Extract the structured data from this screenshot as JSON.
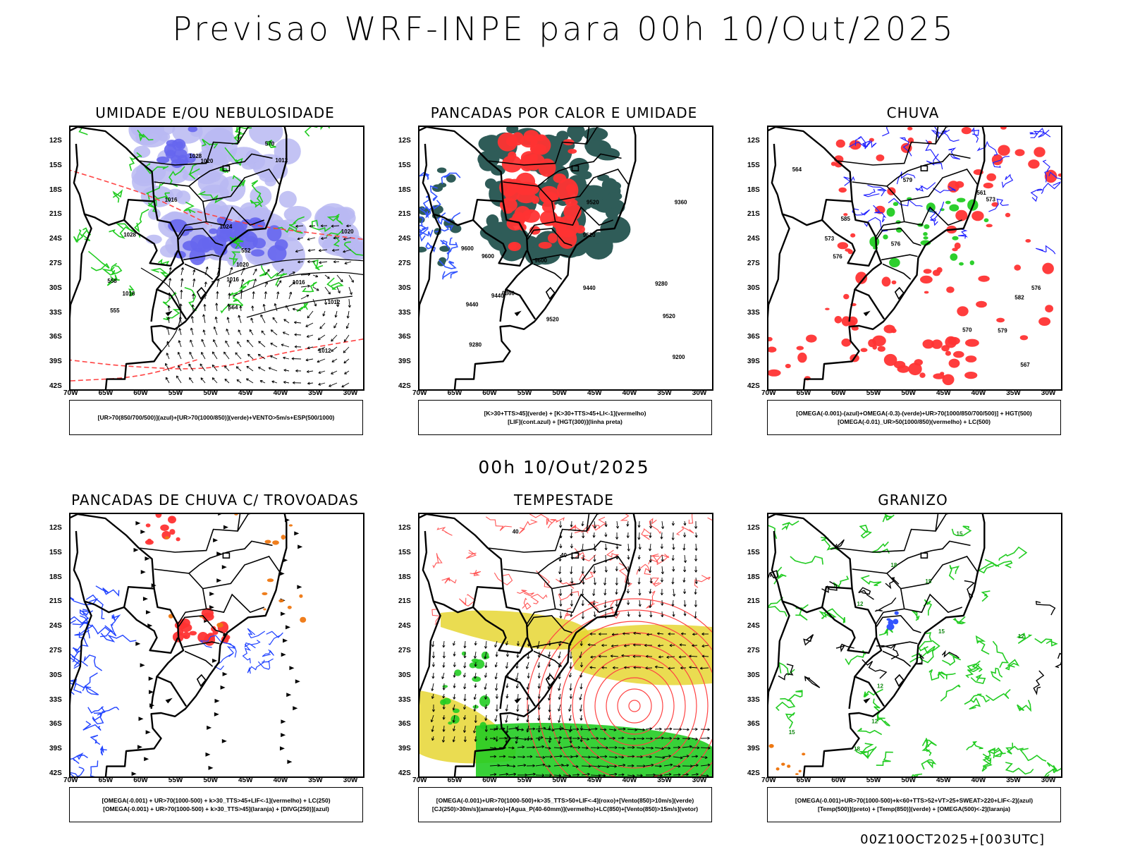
{
  "title": "Previsao WRF-INPE  para 00h 10/Out/2025",
  "mid_title": "00h 10/Out/2025",
  "footer": "00Z10OCT2025+[003UTC]",
  "lat_labels": [
    "12S",
    "15S",
    "18S",
    "21S",
    "24S",
    "27S",
    "30S",
    "33S",
    "36S",
    "39S",
    "42S"
  ],
  "lon_labels": [
    "70W",
    "65W",
    "60W",
    "55W",
    "50W",
    "45W",
    "40W",
    "35W",
    "30W"
  ],
  "colors": {
    "blue": "#6666ee",
    "green": "#22cc22",
    "red": "#ff3333",
    "orange": "#ee7711",
    "yellow": "#e6d633",
    "darkteal": "#2f5c58"
  },
  "panels": [
    {
      "title": "UMIDADE E/OU NEBULOSIDADE",
      "legend": [
        "[UR>70(850/700/500)](azul)+[UR>70(1000/850)](verde)+VENTO>5m/s+ESP(500/1000)"
      ],
      "contour_labels": [
        "1016",
        "1016",
        "1012",
        "1012",
        "1020",
        "1020",
        "1016",
        "1024",
        "1028",
        "1028",
        "1020",
        "1012",
        "1016",
        "570",
        "555",
        "558",
        "552",
        "564"
      ]
    },
    {
      "title": "PANCADAS POR CALOR E UMIDADE",
      "legend": [
        "[K>30+TTS>45](verde) + [K>30+TTS>45+LI<-1](vermelho)",
        "[LIF](cont.azul) + [HGT(300)](linha preta)"
      ],
      "contour_labels": [
        "9600",
        "9600",
        "9520",
        "9520",
        "9600",
        "9520",
        "9440",
        "9440",
        "9520",
        "9440",
        "9360",
        "9360",
        "9280",
        "9280",
        "9200"
      ]
    },
    {
      "title": "CHUVA",
      "legend": [
        "[OMEGA(-0.001)-(azul)+OMEGA(-0.3)-(verde)+UR>70(1000/850/700/500)] + HGT(500)",
        "[OMEGA(-0.01)_UR>50(1000/850)(vermelho) + LC(500)"
      ],
      "contour_labels": [
        "585",
        "582",
        "579",
        "576",
        "576",
        "573",
        "570",
        "567",
        "564",
        "561",
        "576",
        "573",
        "579"
      ]
    },
    {
      "title": "PANCADAS DE CHUVA C/ TROVOADAS",
      "legend": [
        "[OMEGA(-0.001) + UR>70(1000-500) + k>30_TTS>45+LIF<-1](vermelho) + LC(250)",
        "[OMEGA(-0.001) + UR>70(1000-500) + k>30_TTS>45](laranja) + [DIVG(250)](azul)"
      ],
      "contour_labels": []
    },
    {
      "title": "TEMPESTADE",
      "legend": [
        "[OMEGA(-0.001)+UR>70(1000-500)+k>35_TTS>50+LIF<-4](roxo)+[Vento(850)>10m/s](verde)",
        "[CJ(250)>30m/s](amarelo)+[Agua_P(40-60mm)](vermelho)+LC(850)+[Vento(850)>15m/s](vetor)"
      ],
      "contour_labels": [
        "40",
        "40"
      ]
    },
    {
      "title": "GRANIZO",
      "legend": [
        "[OMEGA(-0.001)+UR>70(1000-500)+k<60+TTS>52+VT>25+SWEAT>220+LIF<-2](azul)",
        "[Temp(500)](preto) + [Temp(850)](verde) + [OMEGA(500)<-2](laranja)"
      ],
      "contour_labels": [
        "12",
        "12",
        "15",
        "15",
        "15",
        "12",
        "18",
        "15",
        "12",
        "18"
      ]
    }
  ]
}
